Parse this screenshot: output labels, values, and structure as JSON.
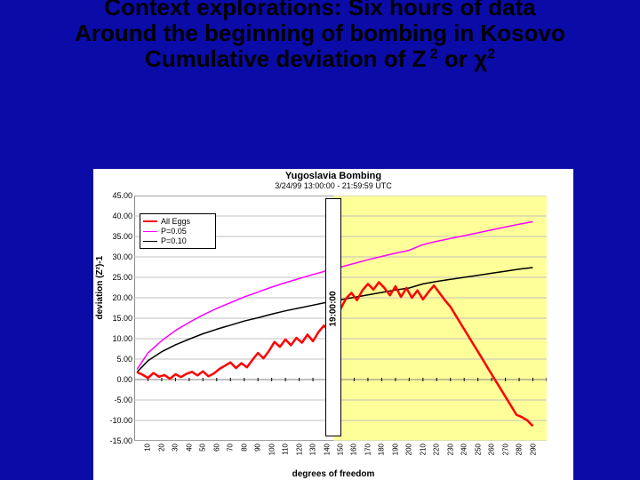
{
  "heading": {
    "line1": "Context explorations: Six hours of data",
    "line2": "Around the beginning of bombing in Kosovo",
    "line3_a": "Cumulative deviation of  Z",
    "line3_sup1": " 2",
    "line3_b": " or χ",
    "line3_sup2": "2"
  },
  "chart": {
    "type": "line",
    "title": "Yugoslavia Bombing",
    "subtitle": "3/24/99 13:00:00 - 21:59:59 UTC",
    "xlabel": "degrees of freedom",
    "ylabel": "deviation (Z²)-1",
    "background_color": "#ffffff",
    "grid_color": "#c0c0c0",
    "region_right_fill": "#ffff99",
    "region_split_at_x": 145,
    "region_split_label": "19:00:00",
    "xlim": [
      0,
      300
    ],
    "ylim": [
      -15,
      45
    ],
    "xtick_start": 10,
    "xtick_step": 10,
    "ytick_start": -15,
    "ytick_step": 5,
    "legend_items": [
      {
        "label": "All Eggs",
        "color": "#ff0000",
        "width": 2
      },
      {
        "label": "P=0.05",
        "color": "#ff00ff",
        "width": 1
      },
      {
        "label": "P=0.10",
        "color": "#000000",
        "width": 1
      }
    ],
    "series": {
      "p005": {
        "color": "#ff00ff",
        "width": 1.5,
        "x": [
          2,
          10,
          20,
          30,
          40,
          50,
          60,
          70,
          80,
          90,
          100,
          110,
          120,
          130,
          140,
          150,
          160,
          170,
          180,
          190,
          200,
          210,
          220,
          230,
          240,
          250,
          260,
          270,
          280,
          290
        ],
        "y": [
          2.5,
          6.5,
          9.5,
          12,
          14,
          15.8,
          17.4,
          18.8,
          20.2,
          21.4,
          22.6,
          23.7,
          24.7,
          25.7,
          26.6,
          27.5,
          28.4,
          29.3,
          30.1,
          30.9,
          31.6,
          33,
          33.8,
          34.5,
          35.2,
          35.9,
          36.6,
          37.3,
          38,
          38.6
        ]
      },
      "p010": {
        "color": "#000000",
        "width": 1.5,
        "x": [
          2,
          10,
          20,
          30,
          40,
          50,
          60,
          70,
          80,
          90,
          100,
          110,
          120,
          130,
          140,
          150,
          160,
          170,
          180,
          190,
          200,
          210,
          220,
          230,
          240,
          250,
          260,
          270,
          280,
          290
        ],
        "y": [
          1.8,
          4.6,
          6.8,
          8.5,
          9.9,
          11.2,
          12.3,
          13.3,
          14.3,
          15.1,
          16,
          16.8,
          17.5,
          18.2,
          18.9,
          19.5,
          20.1,
          20.7,
          21.3,
          21.9,
          22.4,
          23.4,
          24,
          24.5,
          25,
          25.5,
          26,
          26.5,
          27,
          27.4
        ]
      },
      "all_eggs": {
        "color": "#ff0000",
        "width": 2.5,
        "x": [
          2,
          6,
          10,
          14,
          18,
          22,
          26,
          30,
          34,
          38,
          42,
          46,
          50,
          54,
          58,
          62,
          66,
          70,
          74,
          78,
          82,
          86,
          90,
          94,
          98,
          102,
          106,
          110,
          114,
          118,
          122,
          126,
          130,
          134,
          138,
          142,
          146,
          150,
          154,
          158,
          162,
          166,
          170,
          174,
          178,
          182,
          186,
          190,
          194,
          198,
          202,
          206,
          210,
          214,
          218,
          222,
          226,
          230,
          234,
          238,
          242,
          246,
          250,
          254,
          258,
          262,
          266,
          270,
          274,
          278,
          282,
          286,
          290
        ],
        "y": [
          1.8,
          1.2,
          0.4,
          1.6,
          0.7,
          1.1,
          0.2,
          1.3,
          0.6,
          1.4,
          1.9,
          1.0,
          2.0,
          0.8,
          1.5,
          2.6,
          3.4,
          4.2,
          2.8,
          4.0,
          3.0,
          4.8,
          6.5,
          5.2,
          7.0,
          9.2,
          8.0,
          9.8,
          8.4,
          10.2,
          9.0,
          11.0,
          9.4,
          11.6,
          13.2,
          11.8,
          15.0,
          17.2,
          19.8,
          21.2,
          19.4,
          21.8,
          23.4,
          22.0,
          23.8,
          22.4,
          20.6,
          22.8,
          20.2,
          22.4,
          20.0,
          21.8,
          19.6,
          21.4,
          23.0,
          21.2,
          19.4,
          17.8,
          15.6,
          13.4,
          11.2,
          9.0,
          6.8,
          4.6,
          2.4,
          0.2,
          -2.0,
          -4.2,
          -6.4,
          -8.6,
          -9.2,
          -10.0,
          -11.4
        ]
      }
    }
  },
  "colors": {
    "slide_bg": "#0b0ba8",
    "text": "#000000"
  }
}
